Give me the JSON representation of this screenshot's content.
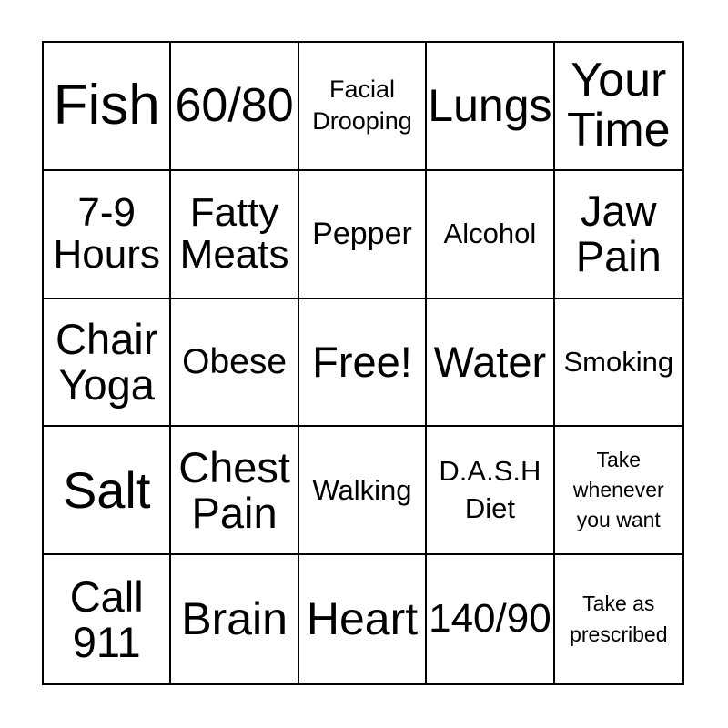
{
  "card": {
    "kind": "bingo-card",
    "grid_size": "5x5",
    "rows": [
      {
        "cells": [
          {
            "text": "Fish"
          },
          {
            "text": "60/80"
          },
          {
            "text": "Facial Drooping"
          },
          {
            "text": "Lungs"
          },
          {
            "text": "Your Time"
          }
        ]
      },
      {
        "cells": [
          {
            "text": "7-9 Hours"
          },
          {
            "text": "Fatty Meats"
          },
          {
            "text": "Pepper"
          },
          {
            "text": "Alcohol"
          },
          {
            "text": "Jaw Pain"
          }
        ]
      },
      {
        "cells": [
          {
            "text": "Chair Yoga"
          },
          {
            "text": "Obese"
          },
          {
            "text": "Free!"
          },
          {
            "text": "Water"
          },
          {
            "text": "Smoking"
          }
        ]
      },
      {
        "cells": [
          {
            "text": "Salt"
          },
          {
            "text": "Chest Pain"
          },
          {
            "text": "Walking"
          },
          {
            "text": "D.A.S.H Diet"
          },
          {
            "text": "Take whenever you want"
          }
        ]
      },
      {
        "cells": [
          {
            "text": "Call 911"
          },
          {
            "text": "Brain"
          },
          {
            "text": "Heart"
          },
          {
            "text": "140/90"
          },
          {
            "text": "Take as prescribed"
          }
        ]
      }
    ]
  },
  "colors": {
    "background": "#ffffff",
    "grid_line": "#000000",
    "text": "#000000"
  }
}
